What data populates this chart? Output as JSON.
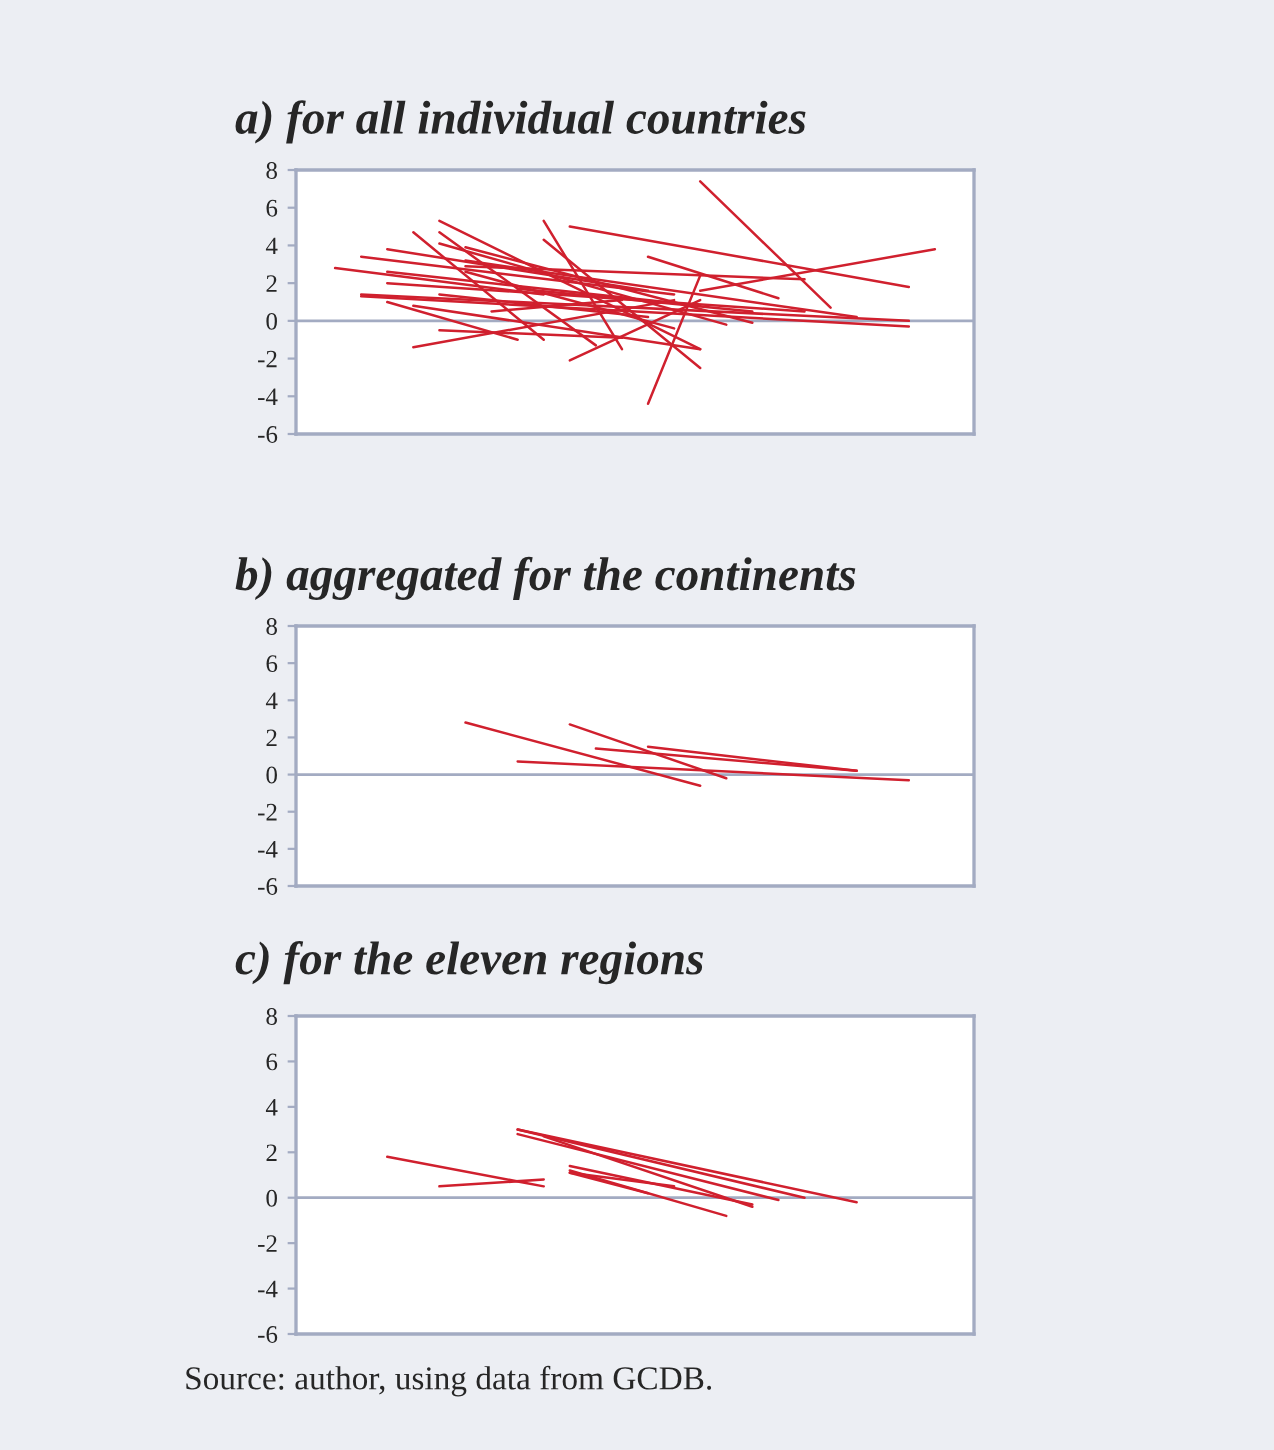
{
  "chart_data": [
    {
      "type": "line",
      "title": "a) for all individual countries",
      "categories": [
        null,
        null,
        null,
        null,
        null,
        null,
        null,
        null,
        null,
        null,
        null,
        null,
        null,
        null,
        null,
        null,
        null,
        null,
        null,
        null,
        null,
        null,
        null,
        null,
        null,
        null
      ],
      "ylim": [
        -6,
        8
      ],
      "yticks": [
        -6,
        -4,
        -2,
        0,
        2,
        4,
        6,
        8
      ],
      "tick_labels": "y",
      "ref_lines": [
        {
          "axis": "y",
          "value": 0,
          "color": "#a3abc2"
        }
      ],
      "series": [
        {
          "color": "#d0202e",
          "values": [
            null,
            null,
            null,
            null,
            null,
            null,
            null,
            null,
            null,
            null,
            null,
            null,
            null,
            null,
            null,
            7.4,
            null,
            null,
            null,
            null,
            0.7,
            null,
            null,
            null,
            null,
            null
          ]
        },
        {
          "color": "#d0202e",
          "values": [
            null,
            null,
            null,
            null,
            null,
            null,
            null,
            null,
            null,
            null,
            5.0,
            null,
            null,
            null,
            null,
            null,
            null,
            null,
            null,
            null,
            null,
            null,
            null,
            1.8,
            null,
            null
          ]
        },
        {
          "color": "#d0202e",
          "values": [
            null,
            null,
            null,
            null,
            null,
            null,
            null,
            null,
            null,
            null,
            null,
            null,
            null,
            3.4,
            null,
            null,
            null,
            null,
            1.2,
            null,
            null,
            null,
            null,
            null,
            null,
            null
          ]
        },
        {
          "color": "#d0202e",
          "values": [
            null,
            null,
            null,
            null,
            null,
            null,
            null,
            null,
            null,
            null,
            null,
            null,
            null,
            null,
            null,
            1.6,
            null,
            null,
            null,
            null,
            null,
            null,
            null,
            null,
            3.8,
            null
          ]
        },
        {
          "color": "#d0202e",
          "values": [
            null,
            null,
            null,
            null,
            null,
            null,
            null,
            null,
            null,
            null,
            null,
            null,
            null,
            -4.4,
            null,
            2.4,
            null,
            null,
            null,
            null,
            null,
            null,
            null,
            null,
            null,
            null
          ]
        },
        {
          "color": "#d0202e",
          "values": [
            null,
            null,
            null,
            null,
            null,
            null,
            null,
            null,
            null,
            null,
            -2.1,
            null,
            null,
            null,
            null,
            1.1,
            null,
            null,
            null,
            null,
            null,
            null,
            null,
            null,
            null,
            null
          ]
        },
        {
          "color": "#d0202e",
          "values": [
            null,
            null,
            null,
            null,
            null,
            null,
            null,
            null,
            null,
            5.3,
            null,
            null,
            -1.5,
            null,
            null,
            null,
            null,
            null,
            null,
            null,
            null,
            null,
            null,
            null,
            null,
            null
          ]
        },
        {
          "color": "#d0202e",
          "values": [
            null,
            null,
            null,
            null,
            null,
            5.3,
            null,
            null,
            null,
            null,
            null,
            null,
            null,
            null,
            null,
            -1.5,
            null,
            null,
            null,
            null,
            null,
            null,
            null,
            null,
            null,
            null
          ]
        },
        {
          "color": "#d0202e",
          "values": [
            null,
            null,
            null,
            null,
            4.7,
            null,
            null,
            null,
            null,
            -1.0,
            null,
            null,
            null,
            null,
            null,
            null,
            null,
            null,
            null,
            null,
            null,
            null,
            null,
            null,
            null,
            null
          ]
        },
        {
          "color": "#d0202e",
          "values": [
            null,
            null,
            null,
            null,
            null,
            4.7,
            null,
            null,
            null,
            null,
            null,
            -1.3,
            null,
            null,
            null,
            null,
            null,
            null,
            null,
            null,
            null,
            null,
            null,
            null,
            null,
            null
          ]
        },
        {
          "color": "#d0202e",
          "values": [
            null,
            null,
            null,
            null,
            null,
            null,
            null,
            null,
            null,
            4.3,
            null,
            null,
            null,
            null,
            null,
            -2.5,
            null,
            null,
            null,
            null,
            null,
            null,
            null,
            null,
            null,
            null
          ]
        },
        {
          "color": "#d0202e",
          "values": [
            null,
            2.8,
            null,
            null,
            null,
            null,
            null,
            null,
            null,
            1.4,
            null,
            null,
            null,
            null,
            null,
            null,
            null,
            null,
            null,
            null,
            null,
            null,
            null,
            null,
            null,
            null
          ]
        },
        {
          "color": "#d0202e",
          "values": [
            null,
            null,
            3.4,
            null,
            null,
            null,
            null,
            null,
            null,
            null,
            null,
            null,
            null,
            null,
            1.4,
            null,
            null,
            null,
            null,
            null,
            null,
            null,
            null,
            null,
            null,
            null
          ]
        },
        {
          "color": "#d0202e",
          "values": [
            null,
            null,
            null,
            3.8,
            null,
            null,
            null,
            null,
            null,
            null,
            null,
            null,
            null,
            1.6,
            null,
            null,
            null,
            null,
            null,
            null,
            null,
            null,
            null,
            null,
            null,
            null
          ]
        },
        {
          "color": "#d0202e",
          "values": [
            null,
            null,
            1.4,
            null,
            null,
            null,
            null,
            null,
            null,
            null,
            null,
            null,
            null,
            null,
            null,
            null,
            null,
            null,
            null,
            null,
            null,
            null,
            null,
            0,
            null,
            null
          ]
        },
        {
          "color": "#d0202e",
          "values": [
            null,
            null,
            1.3,
            null,
            null,
            null,
            null,
            null,
            null,
            null,
            null,
            null,
            null,
            null,
            null,
            null,
            null,
            null,
            null,
            null,
            null,
            null,
            null,
            -0.3,
            null,
            null
          ]
        },
        {
          "color": "#d0202e",
          "values": [
            null,
            null,
            null,
            null,
            -1.4,
            null,
            null,
            null,
            null,
            null,
            null,
            null,
            null,
            null,
            1.1,
            null,
            null,
            null,
            null,
            null,
            null,
            null,
            null,
            null,
            null,
            null
          ]
        },
        {
          "color": "#d0202e",
          "values": [
            null,
            null,
            null,
            null,
            null,
            -0.5,
            null,
            null,
            null,
            null,
            null,
            null,
            -0.9,
            null,
            null,
            null,
            null,
            null,
            null,
            null,
            null,
            null,
            null,
            null,
            null,
            null
          ]
        },
        {
          "color": "#d0202e",
          "values": [
            null,
            null,
            null,
            1.0,
            null,
            null,
            null,
            null,
            -1.0,
            null,
            null,
            null,
            null,
            null,
            null,
            null,
            null,
            null,
            null,
            null,
            null,
            null,
            null,
            null,
            null,
            null
          ]
        },
        {
          "color": "#d0202e",
          "values": [
            null,
            null,
            null,
            null,
            null,
            4.1,
            null,
            null,
            null,
            null,
            null,
            null,
            null,
            null,
            null,
            null,
            -0.2,
            null,
            null,
            null,
            null,
            null,
            null,
            null,
            null,
            null
          ]
        },
        {
          "color": "#d0202e",
          "values": [
            null,
            null,
            null,
            null,
            null,
            null,
            3.9,
            null,
            null,
            null,
            null,
            null,
            null,
            null,
            null,
            null,
            null,
            -0.1,
            null,
            null,
            null,
            null,
            null,
            null,
            null,
            null
          ]
        },
        {
          "color": "#d0202e",
          "values": [
            null,
            null,
            null,
            2.6,
            null,
            null,
            null,
            null,
            null,
            null,
            null,
            null,
            null,
            null,
            null,
            0.8,
            null,
            null,
            null,
            null,
            null,
            null,
            null,
            null,
            null,
            null
          ]
        },
        {
          "color": "#d0202e",
          "values": [
            null,
            null,
            null,
            2.0,
            null,
            null,
            null,
            null,
            null,
            null,
            null,
            null,
            null,
            null,
            null,
            null,
            null,
            null,
            null,
            0.5,
            null,
            null,
            null,
            null,
            null,
            null
          ]
        },
        {
          "color": "#d0202e",
          "values": [
            null,
            null,
            null,
            null,
            null,
            null,
            2.9,
            null,
            null,
            null,
            null,
            null,
            null,
            null,
            null,
            null,
            null,
            null,
            null,
            2.2,
            null,
            null,
            null,
            null,
            null,
            null
          ]
        },
        {
          "color": "#d0202e",
          "values": [
            null,
            null,
            null,
            null,
            null,
            null,
            3.2,
            null,
            null,
            null,
            null,
            null,
            null,
            null,
            null,
            null,
            null,
            null,
            null,
            null,
            null,
            0.2,
            null,
            null,
            null,
            null
          ]
        },
        {
          "color": "#d0202e",
          "values": [
            null,
            null,
            null,
            null,
            0.8,
            null,
            null,
            null,
            null,
            null,
            null,
            null,
            null,
            null,
            null,
            -1.5,
            null,
            null,
            null,
            null,
            null,
            null,
            null,
            null,
            null,
            null
          ]
        },
        {
          "color": "#d0202e",
          "values": [
            null,
            null,
            null,
            null,
            null,
            1.4,
            null,
            null,
            null,
            null,
            null,
            null,
            null,
            0.2,
            null,
            null,
            null,
            null,
            null,
            null,
            null,
            null,
            null,
            null,
            null,
            null
          ]
        },
        {
          "color": "#d0202e",
          "values": [
            null,
            null,
            null,
            null,
            null,
            null,
            null,
            null,
            1.7,
            null,
            null,
            null,
            null,
            null,
            null,
            null,
            null,
            0.5,
            null,
            null,
            null,
            null,
            null,
            null,
            null,
            null
          ]
        },
        {
          "color": "#d0202e",
          "values": [
            null,
            null,
            null,
            null,
            null,
            null,
            2.6,
            null,
            null,
            null,
            null,
            null,
            null,
            null,
            -0.4,
            null,
            null,
            null,
            null,
            null,
            null,
            null,
            null,
            null,
            null,
            null
          ]
        },
        {
          "color": "#d0202e",
          "values": [
            null,
            null,
            null,
            null,
            null,
            null,
            null,
            0.5,
            null,
            null,
            null,
            null,
            1.1,
            null,
            null,
            null,
            null,
            null,
            null,
            null,
            null,
            null,
            null,
            null,
            null,
            null
          ]
        }
      ]
    },
    {
      "type": "line",
      "title": "b) aggregated for the continents",
      "categories": [
        null,
        null,
        null,
        null,
        null,
        null,
        null,
        null,
        null,
        null,
        null,
        null,
        null,
        null,
        null,
        null,
        null,
        null,
        null,
        null,
        null,
        null,
        null,
        null,
        null,
        null
      ],
      "ylim": [
        -6,
        8
      ],
      "yticks": [
        -6,
        -4,
        -2,
        0,
        2,
        4,
        6,
        8
      ],
      "tick_labels": "y",
      "ref_lines": [
        {
          "axis": "y",
          "value": 0,
          "color": "#a3abc2"
        }
      ],
      "series": [
        {
          "color": "#d0202e",
          "values": [
            null,
            null,
            null,
            null,
            null,
            null,
            2.8,
            null,
            null,
            null,
            null,
            null,
            null,
            null,
            null,
            -0.6,
            null,
            null,
            null,
            null,
            null,
            null,
            null,
            null,
            null,
            null
          ]
        },
        {
          "color": "#d0202e",
          "values": [
            null,
            null,
            null,
            null,
            null,
            null,
            null,
            null,
            null,
            null,
            2.7,
            null,
            null,
            null,
            null,
            null,
            -0.2,
            null,
            null,
            null,
            null,
            null,
            null,
            null,
            null,
            null
          ]
        },
        {
          "color": "#d0202e",
          "values": [
            null,
            null,
            null,
            null,
            null,
            null,
            null,
            null,
            null,
            null,
            null,
            1.4,
            null,
            null,
            null,
            null,
            null,
            null,
            null,
            null,
            null,
            0.2,
            null,
            null,
            null,
            null
          ]
        },
        {
          "color": "#d0202e",
          "values": [
            null,
            null,
            null,
            null,
            null,
            null,
            null,
            null,
            null,
            null,
            null,
            null,
            null,
            1.5,
            null,
            null,
            null,
            null,
            null,
            null,
            null,
            0.2,
            null,
            null,
            null,
            null
          ]
        },
        {
          "color": "#d0202e",
          "values": [
            null,
            null,
            null,
            null,
            null,
            null,
            null,
            null,
            0.7,
            null,
            null,
            null,
            null,
            null,
            null,
            null,
            null,
            null,
            null,
            null,
            null,
            null,
            null,
            -0.3,
            null,
            null
          ]
        }
      ]
    },
    {
      "type": "line",
      "title": "c) for the eleven regions",
      "categories": [
        null,
        null,
        null,
        null,
        null,
        null,
        null,
        null,
        null,
        null,
        null,
        null,
        null,
        null,
        null,
        null,
        null,
        null,
        null,
        null,
        null,
        null,
        null,
        null,
        null,
        null
      ],
      "ylim": [
        -6,
        8
      ],
      "yticks": [
        -6,
        -4,
        -2,
        0,
        2,
        4,
        6,
        8
      ],
      "tick_labels": "y",
      "ref_lines": [
        {
          "axis": "y",
          "value": 0,
          "color": "#a3abc2"
        }
      ],
      "annotations": [
        "Source: author, using data from GCDB."
      ],
      "series": [
        {
          "color": "#d0202e",
          "values": [
            null,
            null,
            null,
            1.8,
            null,
            null,
            null,
            null,
            null,
            0.5,
            null,
            null,
            null,
            null,
            null,
            null,
            null,
            null,
            null,
            null,
            null,
            null,
            null,
            null,
            null,
            null
          ]
        },
        {
          "color": "#d0202e",
          "values": [
            null,
            null,
            null,
            null,
            null,
            0.5,
            null,
            null,
            null,
            0.8,
            null,
            null,
            null,
            null,
            null,
            null,
            null,
            null,
            null,
            null,
            null,
            null,
            null,
            null,
            null,
            null
          ]
        },
        {
          "color": "#d0202e",
          "values": [
            null,
            null,
            null,
            null,
            null,
            null,
            null,
            null,
            3.0,
            null,
            null,
            null,
            null,
            null,
            null,
            null,
            null,
            null,
            null,
            null,
            null,
            -0.2,
            null,
            null,
            null,
            null
          ]
        },
        {
          "color": "#d0202e",
          "values": [
            null,
            null,
            null,
            null,
            null,
            null,
            null,
            null,
            3.0,
            null,
            null,
            null,
            null,
            null,
            null,
            null,
            null,
            null,
            null,
            0,
            null,
            null,
            null,
            null,
            null,
            null
          ]
        },
        {
          "color": "#d0202e",
          "values": [
            null,
            null,
            null,
            null,
            null,
            null,
            null,
            null,
            2.8,
            null,
            null,
            null,
            null,
            null,
            null,
            null,
            null,
            null,
            -0.1,
            null,
            null,
            null,
            null,
            null,
            null,
            null
          ]
        },
        {
          "color": "#d0202e",
          "values": [
            null,
            null,
            null,
            null,
            null,
            null,
            null,
            null,
            null,
            2.7,
            null,
            null,
            null,
            null,
            null,
            null,
            null,
            -0.4,
            null,
            null,
            null,
            null,
            null,
            null,
            null,
            null
          ]
        },
        {
          "color": "#d0202e",
          "values": [
            null,
            null,
            null,
            null,
            null,
            null,
            null,
            null,
            null,
            null,
            1.4,
            null,
            null,
            null,
            null,
            null,
            null,
            -0.3,
            null,
            null,
            null,
            null,
            null,
            null,
            null,
            null
          ]
        },
        {
          "color": "#d0202e",
          "values": [
            null,
            null,
            null,
            null,
            null,
            null,
            null,
            null,
            null,
            null,
            1.2,
            null,
            null,
            null,
            null,
            null,
            -0.8,
            null,
            null,
            null,
            null,
            null,
            null,
            null,
            null,
            null
          ]
        },
        {
          "color": "#d0202e",
          "values": [
            null,
            null,
            null,
            null,
            null,
            null,
            null,
            null,
            null,
            null,
            1.1,
            null,
            null,
            0.2,
            null,
            null,
            null,
            null,
            null,
            null,
            null,
            null,
            null,
            null,
            null,
            null
          ]
        },
        {
          "color": "#d0202e",
          "values": [
            null,
            null,
            null,
            null,
            null,
            null,
            null,
            null,
            null,
            null,
            1.1,
            null,
            null,
            null,
            0.5,
            null,
            null,
            null,
            null,
            null,
            null,
            null,
            null,
            null,
            null,
            null
          ]
        }
      ]
    }
  ]
}
